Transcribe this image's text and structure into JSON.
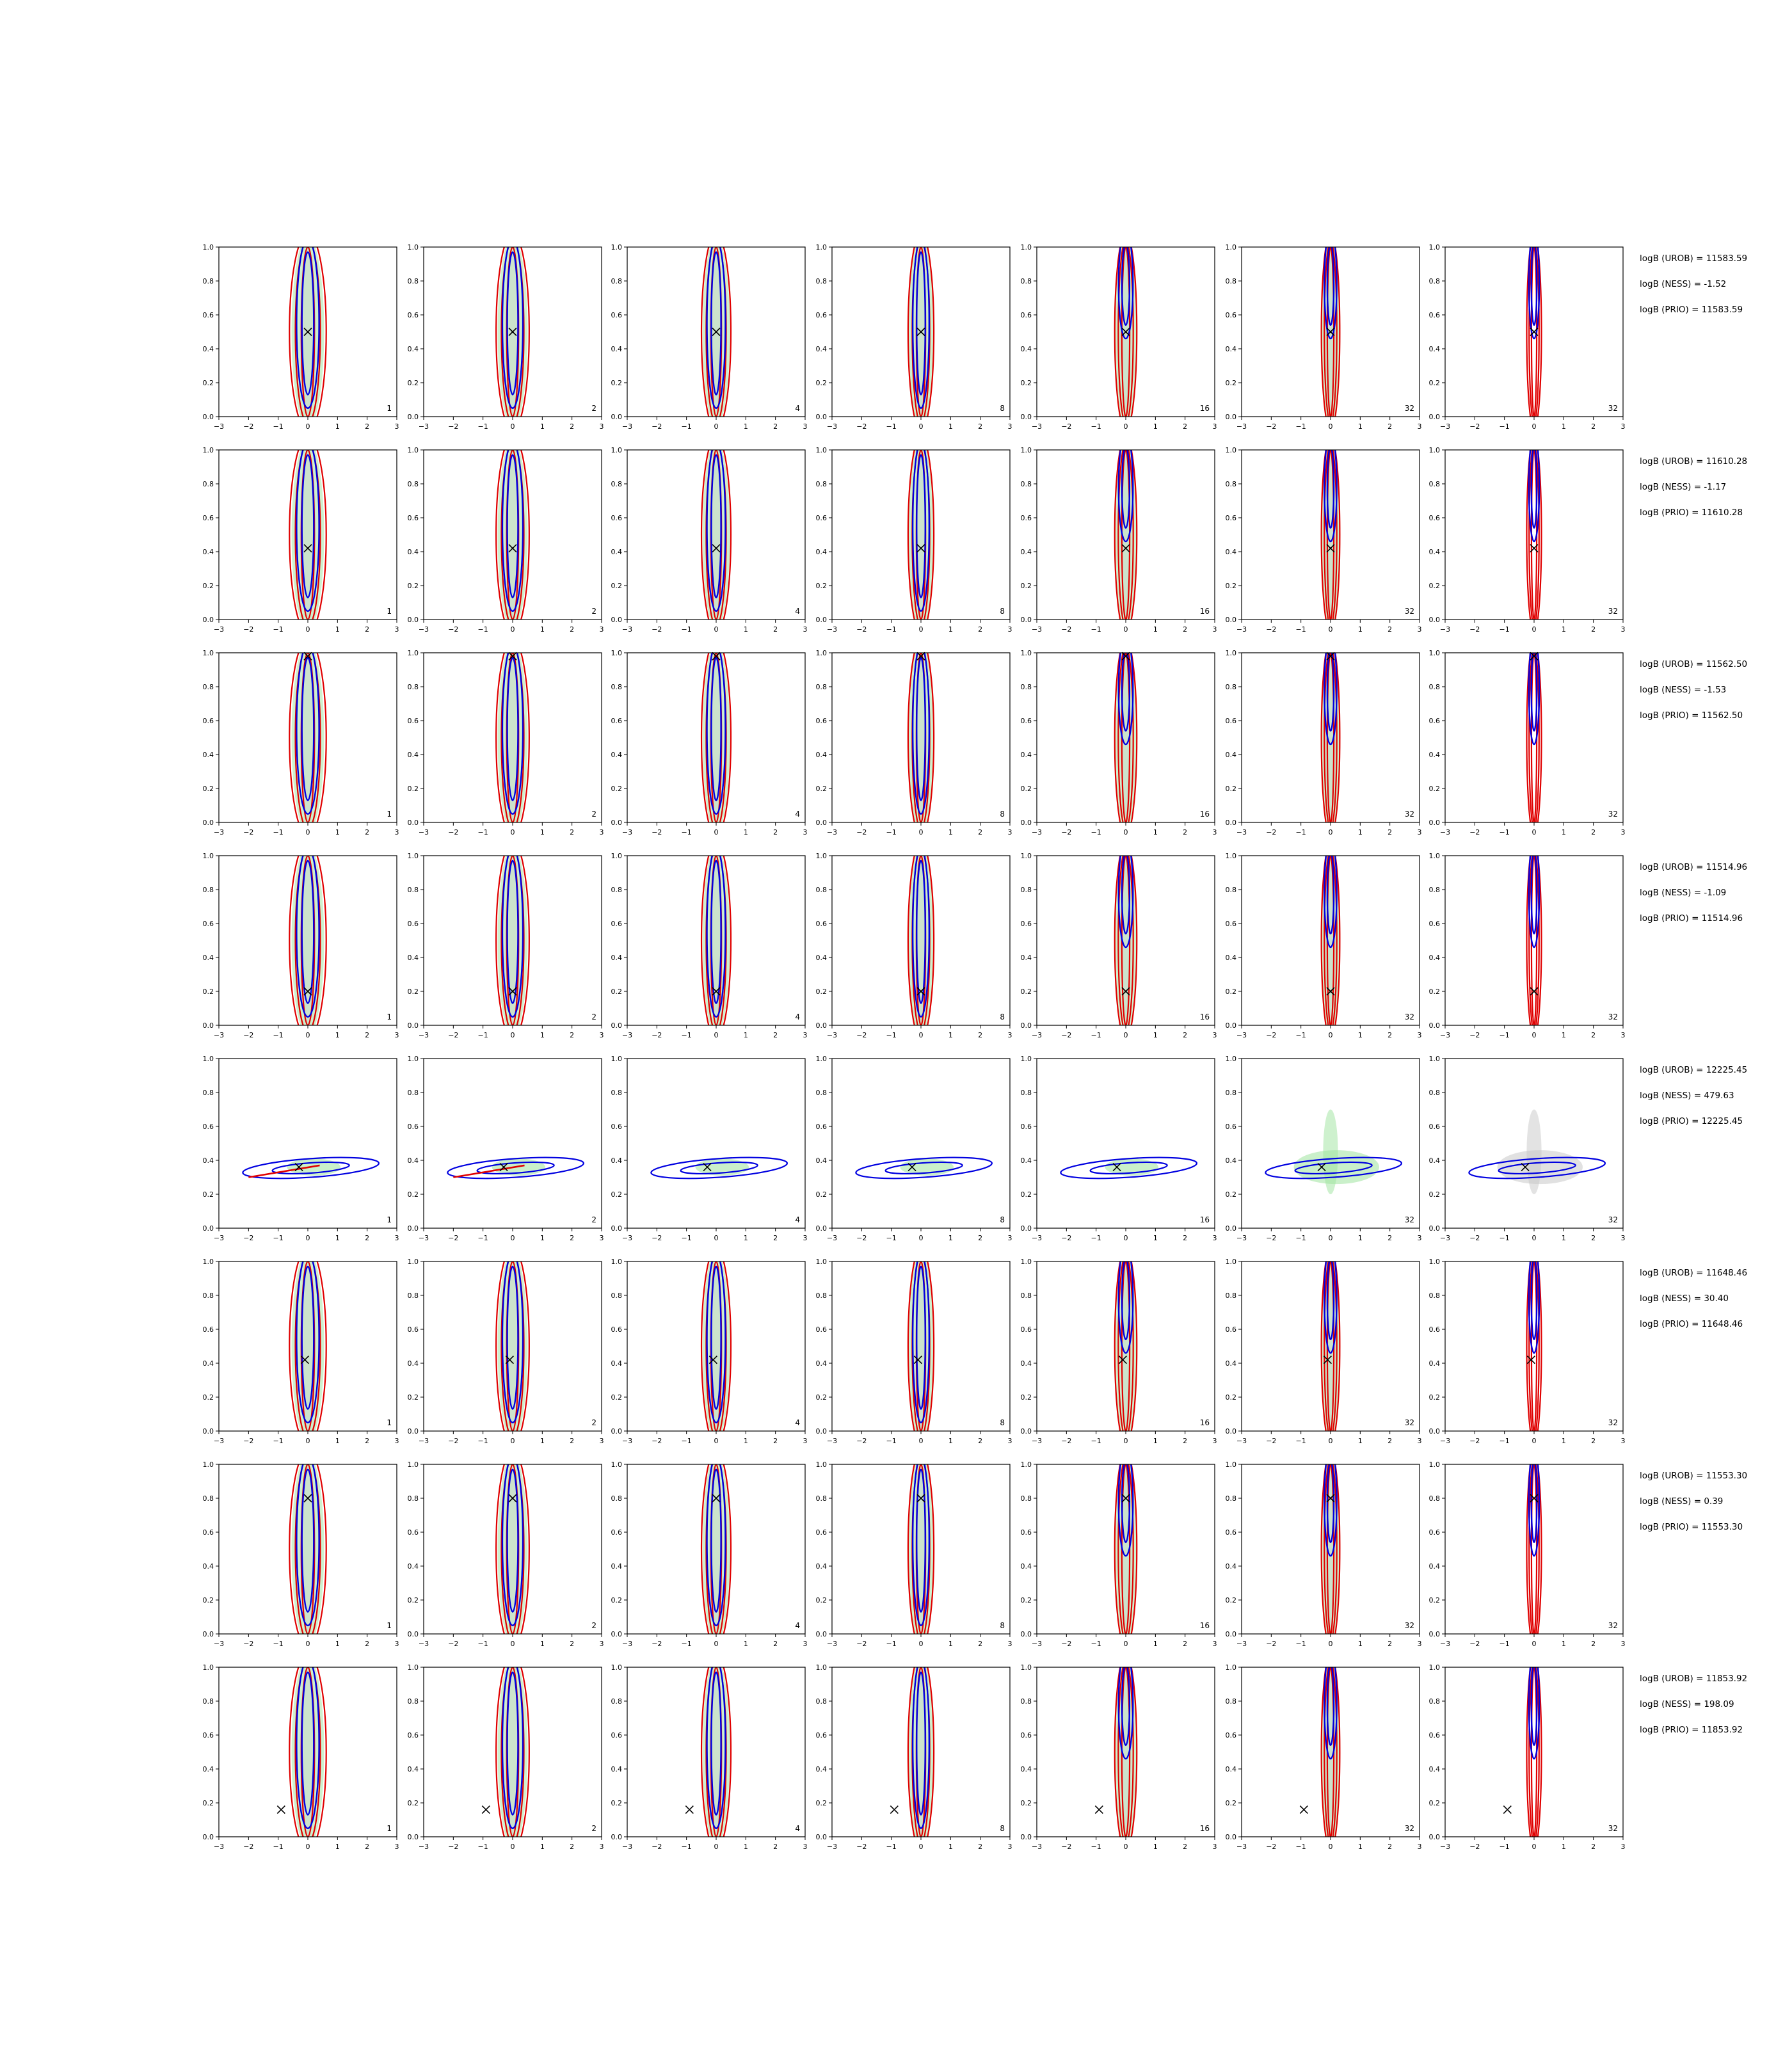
{
  "chart_data": {
    "type": "contour",
    "xlim": [
      -3,
      3
    ],
    "ylim": [
      0.0,
      1.0
    ],
    "xticks": [
      "−3",
      "−2",
      "−1",
      "0",
      "1",
      "2",
      "3"
    ],
    "yticks": [
      "0.0",
      "0.2",
      "0.4",
      "0.6",
      "0.8",
      "1.0"
    ],
    "column_labels": [
      "1",
      "2",
      "4",
      "8",
      "16",
      "32",
      "32"
    ],
    "colors": {
      "green_fill": "#9ee39e",
      "gray_fill": "#c8c8c8",
      "blue": "#0000e0",
      "red": "#e00000",
      "marker": "#000000"
    },
    "rows": [
      {
        "truth": {
          "x": 0.0,
          "y": 0.5
        },
        "shape": "vertical",
        "center_x": 0.0,
        "logB": {
          "urob": "logB (UROB) = 11583.59",
          "ness": "logB (NESS) = -1.52",
          "prio": "logB (PRIO) = 11583.59"
        }
      },
      {
        "truth": {
          "x": 0.0,
          "y": 0.42
        },
        "shape": "vertical",
        "center_x": 0.0,
        "logB": {
          "urob": "logB (UROB) = 11610.28",
          "ness": "logB (NESS) = -1.17",
          "prio": "logB (PRIO) = 11610.28"
        }
      },
      {
        "truth": {
          "x": 0.0,
          "y": 0.98
        },
        "shape": "vertical",
        "center_x": 0.0,
        "logB": {
          "urob": "logB (UROB) = 11562.50",
          "ness": "logB (NESS) = -1.53",
          "prio": "logB (PRIO) = 11562.50"
        }
      },
      {
        "truth": {
          "x": 0.0,
          "y": 0.2
        },
        "shape": "vertical",
        "center_x": 0.0,
        "logB": {
          "urob": "logB (UROB) = 11514.96",
          "ness": "logB (NESS) = -1.09",
          "prio": "logB (PRIO) = 11514.96"
        }
      },
      {
        "truth": {
          "x": -0.3,
          "y": 0.36
        },
        "shape": "horizontal",
        "center_x": 0.0,
        "logB": {
          "urob": "logB (UROB) = 12225.45",
          "ness": "logB (NESS) = 479.63",
          "prio": "logB (PRIO) = 12225.45"
        }
      },
      {
        "truth": {
          "x": -0.1,
          "y": 0.42
        },
        "shape": "vertical",
        "center_x": 0.0,
        "logB": {
          "urob": "logB (UROB) = 11648.46",
          "ness": "logB (NESS) = 30.40",
          "prio": "logB (PRIO) = 11648.46"
        }
      },
      {
        "truth": {
          "x": 0.0,
          "y": 0.8
        },
        "shape": "vertical",
        "center_x": 0.0,
        "logB": {
          "urob": "logB (UROB) = 11553.30",
          "ness": "logB (NESS) = 0.39",
          "prio": "logB (PRIO) = 11553.30"
        }
      },
      {
        "truth": {
          "x": -0.9,
          "y": 0.16
        },
        "shape": "vertical",
        "center_x": 0.0,
        "logB": {
          "urob": "logB (UROB) = 11853.92",
          "ness": "logB (NESS) = 198.09",
          "prio": "logB (PRIO) = 11853.92"
        }
      }
    ]
  }
}
